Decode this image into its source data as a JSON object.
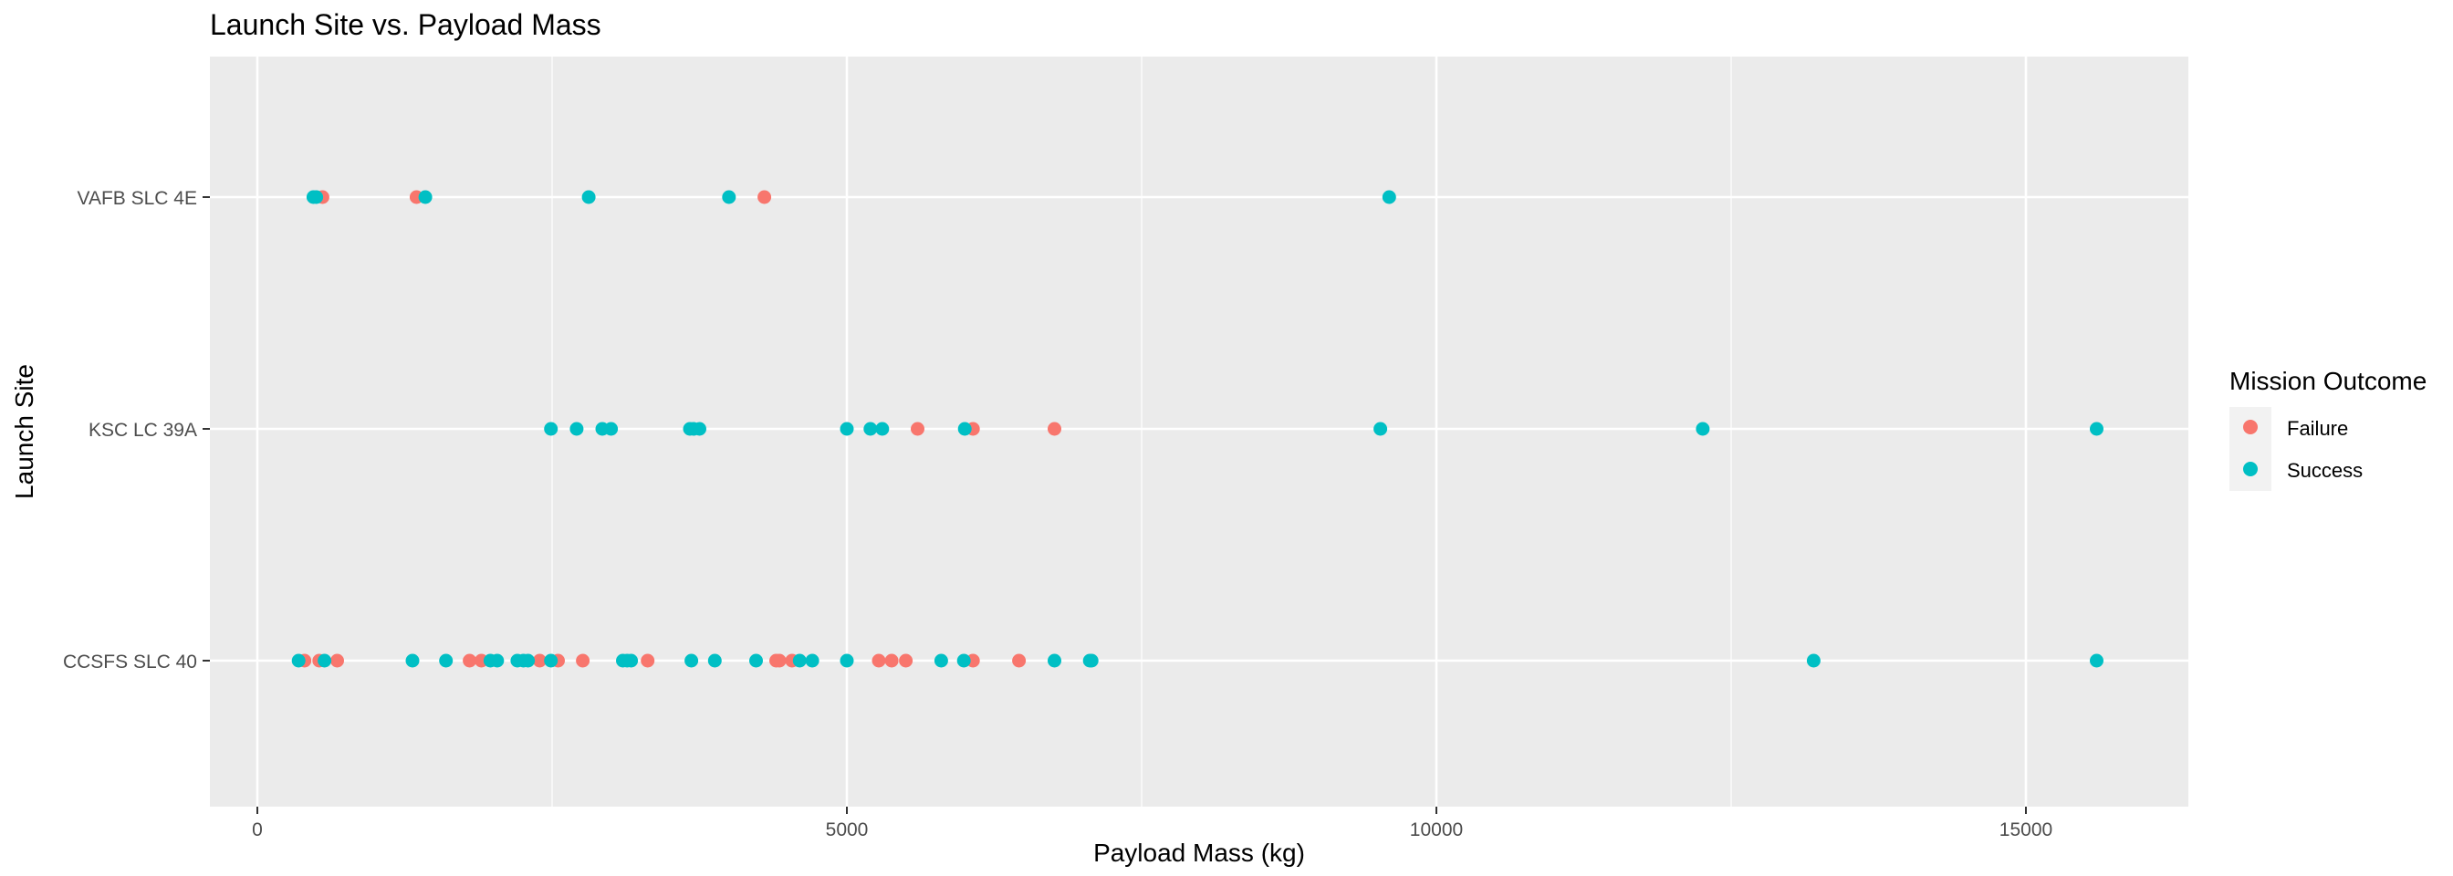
{
  "chart_data": {
    "type": "scatter",
    "title": "Launch Site vs. Payload Mass",
    "xlabel": "Payload Mass (kg)",
    "ylabel": "Launch Site",
    "x_ticks": [
      0,
      5000,
      10000,
      15000
    ],
    "x_tick_labels": [
      "0",
      "5000",
      "10000",
      "15000"
    ],
    "xlim": [
      -800,
      16300
    ],
    "categories": [
      "CCSFS SLC 40",
      "KSC LC 39A",
      "VAFB SLC 4E"
    ],
    "grid": true,
    "legend": {
      "title": "Mission Outcome",
      "placement": "right",
      "entries": [
        {
          "label": "Failure",
          "color": "#F8766D"
        },
        {
          "label": "Success",
          "color": "#00BFC4"
        }
      ]
    },
    "colors": {
      "panel": "#EBEBEB",
      "grid": "#FFFFFF",
      "failure": "#F8766D",
      "success": "#00BFC4"
    },
    "series": [
      {
        "name": "Failure",
        "points": [
          {
            "site": "CCSFS SLC 40",
            "x": 400
          },
          {
            "site": "CCSFS SLC 40",
            "x": 525
          },
          {
            "site": "CCSFS SLC 40",
            "x": 677
          },
          {
            "site": "CCSFS SLC 40",
            "x": 1800
          },
          {
            "site": "CCSFS SLC 40",
            "x": 1900
          },
          {
            "site": "CCSFS SLC 40",
            "x": 2395
          },
          {
            "site": "CCSFS SLC 40",
            "x": 2550
          },
          {
            "site": "CCSFS SLC 40",
            "x": 2760
          },
          {
            "site": "CCSFS SLC 40",
            "x": 3310
          },
          {
            "site": "CCSFS SLC 40",
            "x": 4400
          },
          {
            "site": "CCSFS SLC 40",
            "x": 4428
          },
          {
            "site": "CCSFS SLC 40",
            "x": 4535
          },
          {
            "site": "CCSFS SLC 40",
            "x": 5271
          },
          {
            "site": "CCSFS SLC 40",
            "x": 5380
          },
          {
            "site": "CCSFS SLC 40",
            "x": 5500
          },
          {
            "site": "CCSFS SLC 40",
            "x": 6070
          },
          {
            "site": "CCSFS SLC 40",
            "x": 6460
          },
          {
            "site": "KSC LC 39A",
            "x": 5600
          },
          {
            "site": "KSC LC 39A",
            "x": 6070
          },
          {
            "site": "KSC LC 39A",
            "x": 6761
          },
          {
            "site": "VAFB SLC 4E",
            "x": 553
          },
          {
            "site": "VAFB SLC 4E",
            "x": 1350
          },
          {
            "site": "VAFB SLC 4E",
            "x": 4300
          }
        ]
      },
      {
        "name": "Success",
        "points": [
          {
            "site": "CCSFS SLC 40",
            "x": 350
          },
          {
            "site": "CCSFS SLC 40",
            "x": 570
          },
          {
            "site": "CCSFS SLC 40",
            "x": 1316
          },
          {
            "site": "CCSFS SLC 40",
            "x": 1600
          },
          {
            "site": "CCSFS SLC 40",
            "x": 1977
          },
          {
            "site": "CCSFS SLC 40",
            "x": 2034
          },
          {
            "site": "CCSFS SLC 40",
            "x": 2205
          },
          {
            "site": "CCSFS SLC 40",
            "x": 2257
          },
          {
            "site": "CCSFS SLC 40",
            "x": 2296
          },
          {
            "site": "CCSFS SLC 40",
            "x": 2490
          },
          {
            "site": "CCSFS SLC 40",
            "x": 3100
          },
          {
            "site": "CCSFS SLC 40",
            "x": 3136
          },
          {
            "site": "CCSFS SLC 40",
            "x": 3170
          },
          {
            "site": "CCSFS SLC 40",
            "x": 3681
          },
          {
            "site": "CCSFS SLC 40",
            "x": 3880
          },
          {
            "site": "CCSFS SLC 40",
            "x": 4230
          },
          {
            "site": "CCSFS SLC 40",
            "x": 4600
          },
          {
            "site": "CCSFS SLC 40",
            "x": 4707
          },
          {
            "site": "CCSFS SLC 40",
            "x": 5000
          },
          {
            "site": "CCSFS SLC 40",
            "x": 5800
          },
          {
            "site": "CCSFS SLC 40",
            "x": 5992
          },
          {
            "site": "CCSFS SLC 40",
            "x": 6761
          },
          {
            "site": "CCSFS SLC 40",
            "x": 7060
          },
          {
            "site": "CCSFS SLC 40",
            "x": 7076
          },
          {
            "site": "CCSFS SLC 40",
            "x": 13200
          },
          {
            "site": "CCSFS SLC 40",
            "x": 15600
          },
          {
            "site": "KSC LC 39A",
            "x": 2490
          },
          {
            "site": "KSC LC 39A",
            "x": 2708
          },
          {
            "site": "KSC LC 39A",
            "x": 2926
          },
          {
            "site": "KSC LC 39A",
            "x": 3000
          },
          {
            "site": "KSC LC 39A",
            "x": 3669
          },
          {
            "site": "KSC LC 39A",
            "x": 3700
          },
          {
            "site": "KSC LC 39A",
            "x": 3750
          },
          {
            "site": "KSC LC 39A",
            "x": 5000
          },
          {
            "site": "KSC LC 39A",
            "x": 5200
          },
          {
            "site": "KSC LC 39A",
            "x": 5300
          },
          {
            "site": "KSC LC 39A",
            "x": 6000
          },
          {
            "site": "KSC LC 39A",
            "x": 9525
          },
          {
            "site": "KSC LC 39A",
            "x": 12259
          },
          {
            "site": "KSC LC 39A",
            "x": 15600
          },
          {
            "site": "VAFB SLC 4E",
            "x": 475
          },
          {
            "site": "VAFB SLC 4E",
            "x": 500
          },
          {
            "site": "VAFB SLC 4E",
            "x": 1425
          },
          {
            "site": "VAFB SLC 4E",
            "x": 2810
          },
          {
            "site": "VAFB SLC 4E",
            "x": 4000
          },
          {
            "site": "VAFB SLC 4E",
            "x": 9600
          }
        ]
      }
    ]
  }
}
